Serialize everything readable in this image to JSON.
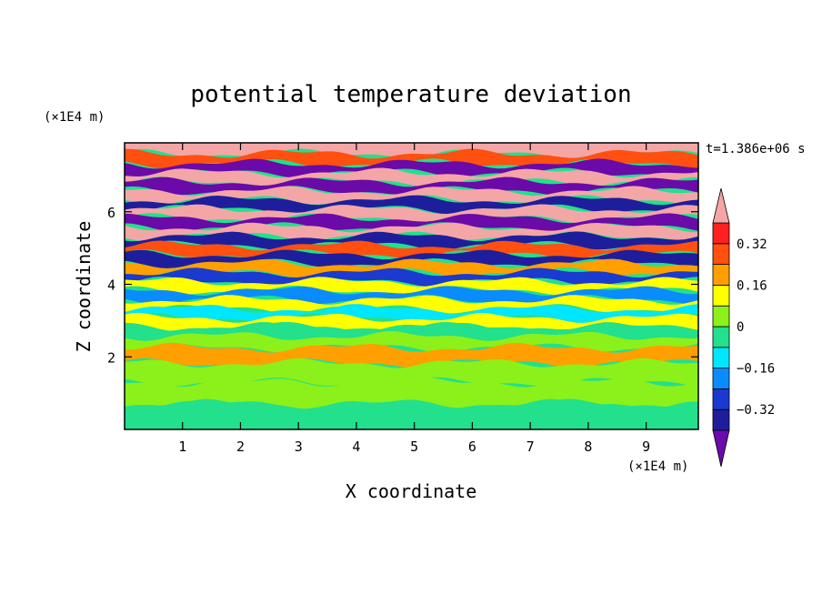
{
  "chart_data": {
    "type": "heatmap",
    "title": "potential temperature deviation",
    "xlabel": "X coordinate",
    "ylabel": "Z coordinate",
    "x_unit": "(×1E4 m)",
    "y_unit": "(×1E4 m)",
    "time_label": "t=1.386e+06 s",
    "xlim": [
      0,
      9.9
    ],
    "ylim": [
      0,
      7.9
    ],
    "x_ticks": [
      1,
      2,
      3,
      4,
      5,
      6,
      7,
      8,
      9
    ],
    "y_ticks": [
      2,
      4,
      6
    ],
    "colorbar": {
      "levels": [
        -0.4,
        -0.32,
        -0.24,
        -0.16,
        -0.08,
        0,
        0.08,
        0.16,
        0.24,
        0.32,
        0.4
      ],
      "labeled_ticks": [
        0.32,
        0.16,
        0,
        -0.16,
        -0.32
      ],
      "colors": [
        "#6a0aa8",
        "#1e1e9c",
        "#1a3ad0",
        "#0a8cff",
        "#00e6ff",
        "#22e08c",
        "#8cf01a",
        "#ffff00",
        "#ffa000",
        "#ff5010",
        "#ff2020",
        "#f4a6a6"
      ],
      "extend": "both"
    },
    "bands": [
      {
        "z": 7.75,
        "v": 0.45
      },
      {
        "z": 7.45,
        "v": 0.3
      },
      {
        "z": 7.2,
        "v": -0.45
      },
      {
        "z": 6.95,
        "v": 0.45
      },
      {
        "z": 6.7,
        "v": -0.45
      },
      {
        "z": 6.45,
        "v": 0.45
      },
      {
        "z": 6.2,
        "v": -0.35
      },
      {
        "z": 5.95,
        "v": 0.4
      },
      {
        "z": 5.7,
        "v": -0.45
      },
      {
        "z": 5.45,
        "v": 0.45
      },
      {
        "z": 5.2,
        "v": -0.4
      },
      {
        "z": 4.95,
        "v": 0.3
      },
      {
        "z": 4.7,
        "v": -0.4
      },
      {
        "z": 4.45,
        "v": 0.2
      },
      {
        "z": 4.2,
        "v": -0.3
      },
      {
        "z": 3.95,
        "v": 0.1
      },
      {
        "z": 3.7,
        "v": -0.2
      },
      {
        "z": 3.45,
        "v": 0.15
      },
      {
        "z": 3.2,
        "v": -0.1
      },
      {
        "z": 2.95,
        "v": 0.12
      },
      {
        "z": 2.7,
        "v": -0.04
      },
      {
        "z": 2.45,
        "v": 0.06
      },
      {
        "z": 2.05,
        "v": 0.2
      },
      {
        "z": 1.6,
        "v": 0.03
      },
      {
        "z": 1.0,
        "v": 0.05
      },
      {
        "z": 0.4,
        "v": -0.02
      }
    ]
  }
}
